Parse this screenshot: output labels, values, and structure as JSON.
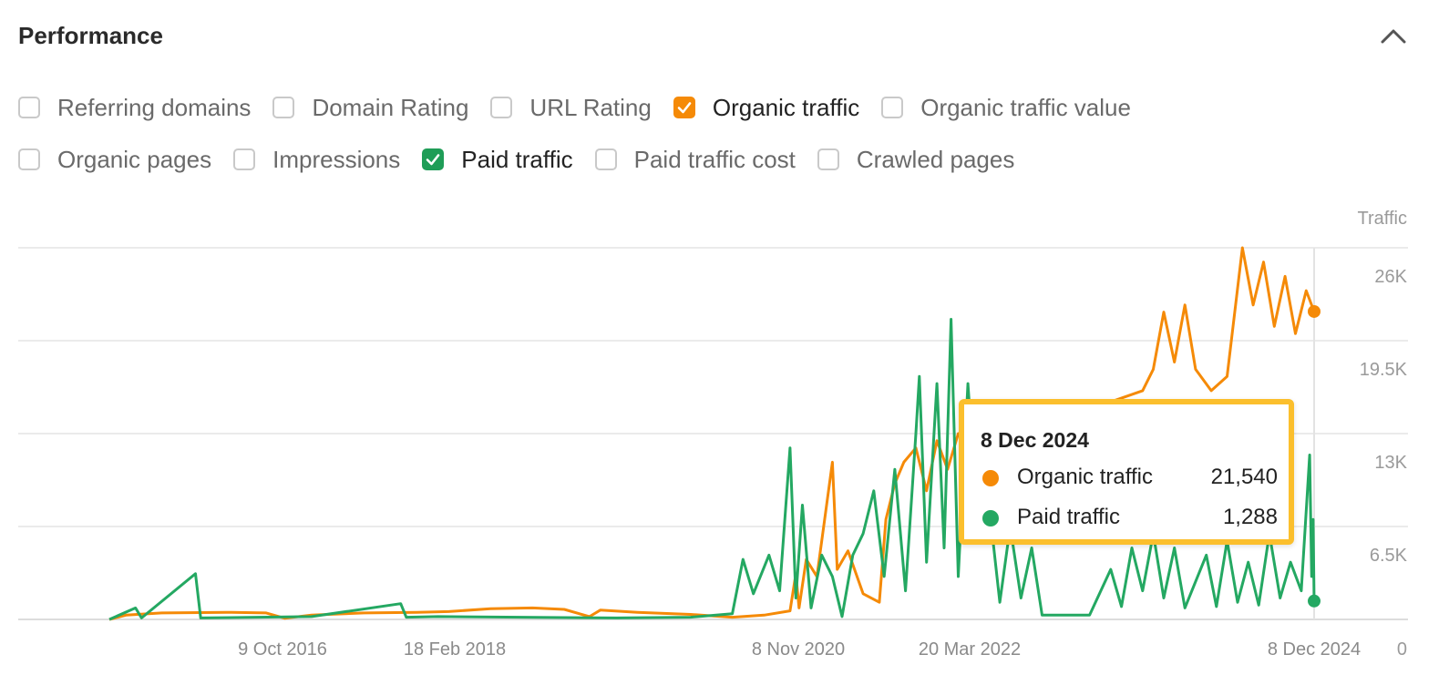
{
  "header": {
    "title": "Performance",
    "collapse_icon": "chevron-up-icon"
  },
  "filters": {
    "row1": [
      {
        "label": "Referring domains",
        "checked": false
      },
      {
        "label": "Domain Rating",
        "checked": false
      },
      {
        "label": "URL Rating",
        "checked": false
      },
      {
        "label": "Organic traffic",
        "checked": true,
        "color": "#f58a07"
      },
      {
        "label": "Organic traffic value",
        "checked": false
      }
    ],
    "row2": [
      {
        "label": "Organic pages",
        "checked": false
      },
      {
        "label": "Impressions",
        "checked": false
      },
      {
        "label": "Paid traffic",
        "checked": true,
        "color": "#1f9d57"
      },
      {
        "label": "Paid traffic cost",
        "checked": false
      },
      {
        "label": "Crawled pages",
        "checked": false
      }
    ]
  },
  "tooltip": {
    "date": "8 Dec 2024",
    "rows": [
      {
        "name": "Organic traffic",
        "value": "21,540",
        "color": "#f58a07"
      },
      {
        "name": "Paid traffic",
        "value": "1,288",
        "color": "#24a862"
      }
    ]
  },
  "chart_data": {
    "type": "line",
    "yaxis_title": "Traffic",
    "ylim": [
      0,
      26000
    ],
    "y_ticks": [
      "26K",
      "19.5K",
      "13K",
      "6.5K",
      "0"
    ],
    "y_tick_values": [
      26000,
      19500,
      13000,
      6500,
      0
    ],
    "x_ticks": [
      {
        "label": "9 Oct 2016",
        "date": "2016-10-09"
      },
      {
        "label": "18 Feb 2018",
        "date": "2018-02-18"
      },
      {
        "label": "8 Nov 2020",
        "date": "2020-11-08"
      },
      {
        "label": "20 Mar 2022",
        "date": "2022-03-20"
      },
      {
        "label": "8 Dec 2024",
        "date": "2024-12-08"
      }
    ],
    "x_range": [
      "2015-09-01",
      "2024-12-08"
    ],
    "series": [
      {
        "name": "Organic traffic",
        "color": "#f58a07",
        "points": [
          [
            "2015-09-01",
            0
          ],
          [
            "2015-10-10",
            300
          ],
          [
            "2016-01-01",
            450
          ],
          [
            "2016-06-01",
            500
          ],
          [
            "2016-09-01",
            450
          ],
          [
            "2016-10-15",
            80
          ],
          [
            "2017-01-01",
            300
          ],
          [
            "2017-06-01",
            450
          ],
          [
            "2017-11-01",
            500
          ],
          [
            "2018-02-01",
            550
          ],
          [
            "2018-06-01",
            750
          ],
          [
            "2018-10-01",
            800
          ],
          [
            "2019-01-01",
            700
          ],
          [
            "2019-03-15",
            200
          ],
          [
            "2019-04-15",
            650
          ],
          [
            "2019-08-01",
            500
          ],
          [
            "2020-01-01",
            350
          ],
          [
            "2020-05-01",
            150
          ],
          [
            "2020-08-01",
            300
          ],
          [
            "2020-10-15",
            600
          ],
          [
            "2020-11-01",
            3200
          ],
          [
            "2020-11-10",
            800
          ],
          [
            "2020-12-01",
            4200
          ],
          [
            "2021-01-01",
            3000
          ],
          [
            "2021-02-15",
            11000
          ],
          [
            "2021-03-01",
            3500
          ],
          [
            "2021-04-01",
            4800
          ],
          [
            "2021-05-15",
            1800
          ],
          [
            "2021-07-01",
            1200
          ],
          [
            "2021-07-20",
            7000
          ],
          [
            "2021-08-15",
            9500
          ],
          [
            "2021-09-10",
            11000
          ],
          [
            "2021-10-15",
            12000
          ],
          [
            "2021-11-15",
            9000
          ],
          [
            "2021-12-15",
            12500
          ],
          [
            "2022-01-15",
            10500
          ],
          [
            "2022-02-15",
            13000
          ],
          [
            "2022-03-15",
            12800
          ],
          [
            "2022-04-15",
            12000
          ],
          [
            "2023-08-01",
            16000
          ],
          [
            "2023-09-01",
            17500
          ],
          [
            "2023-10-01",
            21500
          ],
          [
            "2023-11-01",
            18000
          ],
          [
            "2023-12-01",
            22000
          ],
          [
            "2024-01-01",
            17500
          ],
          [
            "2024-02-15",
            16000
          ],
          [
            "2024-04-01",
            17000
          ],
          [
            "2024-05-15",
            26000
          ],
          [
            "2024-06-15",
            22000
          ],
          [
            "2024-07-15",
            25000
          ],
          [
            "2024-08-15",
            20500
          ],
          [
            "2024-09-15",
            24000
          ],
          [
            "2024-10-15",
            20000
          ],
          [
            "2024-11-15",
            23000
          ],
          [
            "2024-12-08",
            21540
          ]
        ]
      },
      {
        "name": "Paid traffic",
        "color": "#24a862",
        "points": [
          [
            "2015-09-01",
            0
          ],
          [
            "2015-11-01",
            800
          ],
          [
            "2015-11-15",
            100
          ],
          [
            "2016-03-20",
            3200
          ],
          [
            "2016-04-01",
            100
          ],
          [
            "2017-01-01",
            200
          ],
          [
            "2017-09-15",
            1100
          ],
          [
            "2017-10-01",
            150
          ],
          [
            "2018-01-01",
            200
          ],
          [
            "2019-06-01",
            100
          ],
          [
            "2020-01-01",
            150
          ],
          [
            "2020-05-01",
            400
          ],
          [
            "2020-06-01",
            4200
          ],
          [
            "2020-07-01",
            1800
          ],
          [
            "2020-08-15",
            4500
          ],
          [
            "2020-09-15",
            2000
          ],
          [
            "2020-10-15",
            12000
          ],
          [
            "2020-11-01",
            1500
          ],
          [
            "2020-11-20",
            8000
          ],
          [
            "2020-12-15",
            800
          ],
          [
            "2021-01-15",
            4500
          ],
          [
            "2021-02-15",
            3000
          ],
          [
            "2021-03-15",
            200
          ],
          [
            "2021-04-15",
            4500
          ],
          [
            "2021-05-15",
            6000
          ],
          [
            "2021-06-15",
            9000
          ],
          [
            "2021-07-15",
            3000
          ],
          [
            "2021-08-15",
            10500
          ],
          [
            "2021-09-15",
            2000
          ],
          [
            "2021-10-15",
            13000
          ],
          [
            "2021-10-25",
            17000
          ],
          [
            "2021-11-15",
            4000
          ],
          [
            "2021-12-15",
            16500
          ],
          [
            "2022-01-05",
            5000
          ],
          [
            "2022-01-25",
            21000
          ],
          [
            "2022-02-15",
            3000
          ],
          [
            "2022-03-15",
            16500
          ],
          [
            "2022-04-15",
            5500
          ],
          [
            "2022-05-15",
            8000
          ],
          [
            "2022-06-15",
            1200
          ],
          [
            "2022-07-15",
            6500
          ],
          [
            "2022-08-15",
            1500
          ],
          [
            "2022-09-15",
            5000
          ],
          [
            "2022-10-15",
            300
          ],
          [
            "2023-03-01",
            300
          ],
          [
            "2023-05-01",
            3500
          ],
          [
            "2023-06-01",
            900
          ],
          [
            "2023-07-01",
            5000
          ],
          [
            "2023-08-01",
            2000
          ],
          [
            "2023-09-01",
            6000
          ],
          [
            "2023-10-01",
            1500
          ],
          [
            "2023-11-01",
            5000
          ],
          [
            "2023-12-01",
            800
          ],
          [
            "2024-02-01",
            4500
          ],
          [
            "2024-03-01",
            900
          ],
          [
            "2024-04-01",
            5500
          ],
          [
            "2024-05-01",
            1200
          ],
          [
            "2024-06-01",
            4000
          ],
          [
            "2024-07-01",
            1000
          ],
          [
            "2024-08-01",
            6000
          ],
          [
            "2024-09-01",
            1500
          ],
          [
            "2024-10-01",
            4000
          ],
          [
            "2024-11-01",
            2000
          ],
          [
            "2024-11-25",
            11500
          ],
          [
            "2024-12-01",
            3000
          ],
          [
            "2024-12-05",
            7000
          ],
          [
            "2024-12-08",
            1288
          ]
        ]
      }
    ],
    "grid": true,
    "cursor_date": "2024-12-08"
  }
}
